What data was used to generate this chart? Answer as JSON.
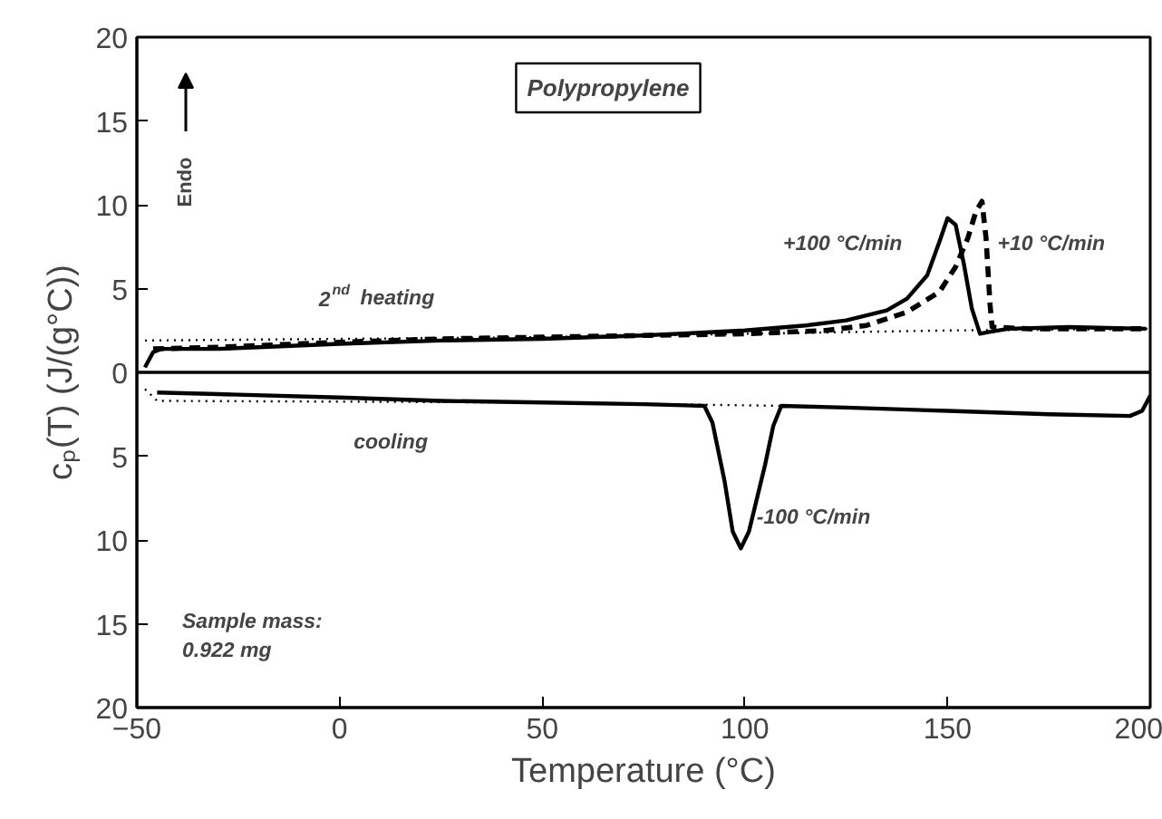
{
  "chart_data": {
    "type": "line",
    "title": "Polypropylene",
    "xlabel": "Temperature (°C)",
    "ylabel": "cₚ(T) (J/(g°C))",
    "xlim": [
      -50,
      200
    ],
    "xticks": [
      -50,
      0,
      50,
      100,
      150,
      200
    ],
    "ylim": [
      -20,
      20
    ],
    "yticks": [
      {
        "value": -20,
        "label": "20"
      },
      {
        "value": -15,
        "label": "15"
      },
      {
        "value": -10,
        "label": "10"
      },
      {
        "value": -5,
        "label": "5"
      },
      0,
      5,
      10,
      15,
      20
    ],
    "grid": false,
    "marker": "none",
    "series": [
      {
        "color": "#000000",
        "line_style": "solid",
        "x": [
          -48,
          -46,
          -44,
          -40,
          -30,
          -20,
          0,
          25,
          50,
          75,
          100,
          115,
          125,
          135,
          140,
          145,
          148,
          150,
          152,
          154,
          156,
          158,
          160,
          165,
          180,
          199
        ],
        "values": [
          0.3,
          1.2,
          1.4,
          1.4,
          1.4,
          1.5,
          1.7,
          1.9,
          2.0,
          2.2,
          2.5,
          2.8,
          3.1,
          3.7,
          4.4,
          5.8,
          7.8,
          9.2,
          8.8,
          6.5,
          3.8,
          2.3,
          2.4,
          2.6,
          2.7,
          2.6
        ]
      },
      {
        "color": "#000000",
        "line_style": "dashed",
        "x": [
          -46,
          -30,
          0,
          25,
          50,
          75,
          100,
          120,
          130,
          140,
          148,
          152,
          155,
          157,
          158.5,
          159.5,
          160.5,
          161,
          170,
          199
        ],
        "values": [
          1.4,
          1.5,
          1.8,
          2.0,
          2.1,
          2.2,
          2.3,
          2.5,
          2.8,
          3.6,
          4.8,
          6.3,
          8.0,
          9.6,
          10.2,
          8.0,
          4.0,
          2.7,
          2.6,
          2.6
        ]
      },
      {
        "color": "#000000",
        "line_style": "solid",
        "x": [
          -45,
          -30,
          0,
          25,
          50,
          75,
          90,
          92,
          95,
          97,
          99,
          101,
          103,
          105,
          107,
          109,
          125,
          150,
          175,
          195,
          198,
          200
        ],
        "values": [
          -1.2,
          -1.3,
          -1.5,
          -1.7,
          -1.8,
          -1.9,
          -2.0,
          -3.0,
          -6.5,
          -9.5,
          -10.5,
          -9.5,
          -7.5,
          -5.5,
          -3.2,
          -2.0,
          -2.1,
          -2.3,
          -2.5,
          -2.6,
          -2.3,
          -1.4
        ]
      },
      {
        "color": "#000000",
        "line_style": "dotted",
        "x": [
          -48,
          50,
          150,
          200
        ],
        "values": [
          1.9,
          2.1,
          2.5,
          2.6
        ]
      },
      {
        "color": "#000000",
        "line_style": "dotted",
        "x": [
          -48,
          -45,
          50,
          110
        ],
        "values": [
          -1.0,
          -1.7,
          -1.8,
          -2.0
        ]
      }
    ],
    "ref_lines": [
      {
        "axis": "y",
        "value": 0,
        "color": "#000000",
        "line_style": "solid"
      }
    ],
    "annotations": [
      {
        "text": "2$^{nd}$ heating",
        "x": 12,
        "y": 2.0
      },
      {
        "text": "cooling",
        "x": 15,
        "y": -1.6
      },
      {
        "text": "+100 °C/min",
        "x": 147,
        "y": 7.6
      },
      {
        "text": "+10 °C/min",
        "x": 161,
        "y": 7.6
      },
      {
        "text": "-100 °C/min",
        "x": 102,
        "y": -8.7
      },
      "Endo",
      "Sample mass:\n0.922 mg"
    ]
  }
}
